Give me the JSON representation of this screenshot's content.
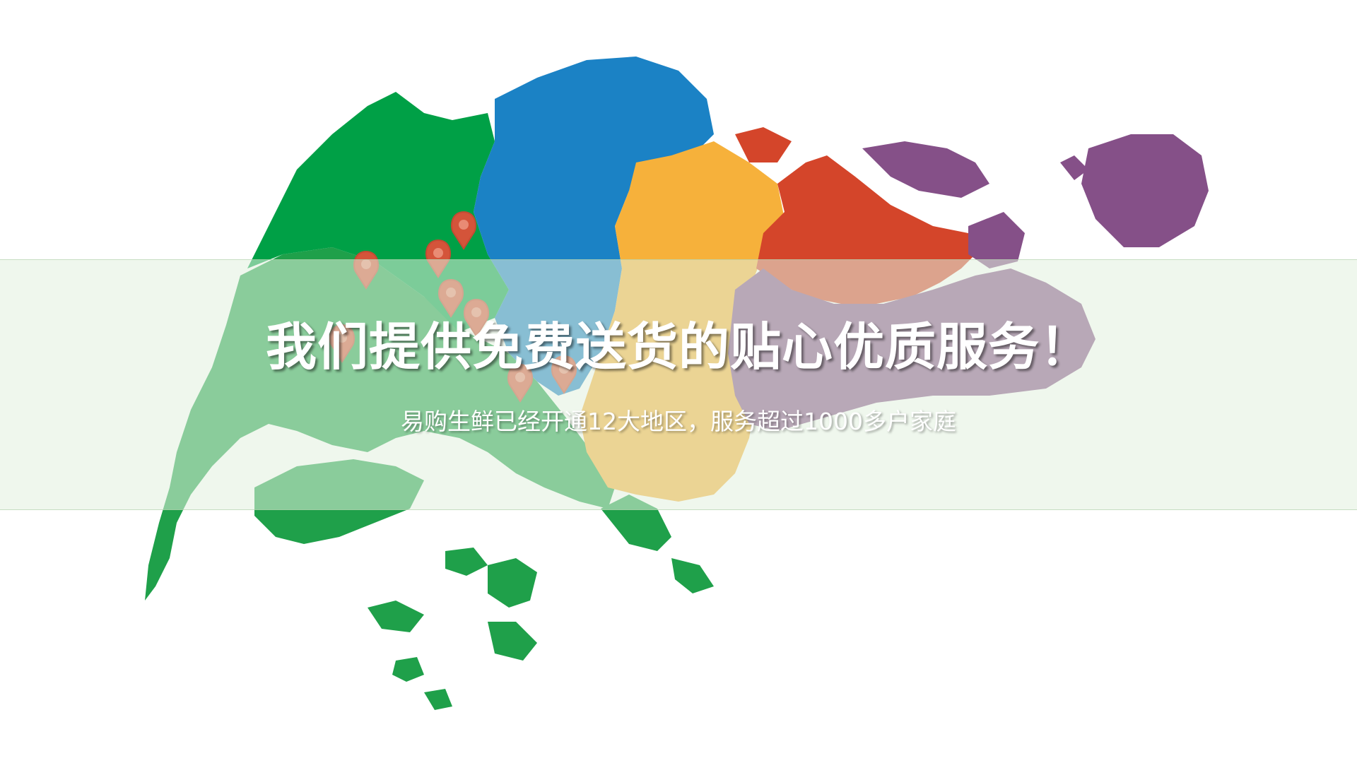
{
  "headline": "我们提供免费送货的贴心优质服务！",
  "subline": "易购生鲜已经开通12大地区，服务超过1000多户家庭",
  "colors": {
    "west_region": "#1fa04a",
    "north_region": "#00a046",
    "central_region": "#1b82c5",
    "north_east_region": "#f6b13b",
    "east_orange_region": "#d4452a",
    "east_region": "#855088",
    "pin": "#d4543a",
    "band": "#e1f0de"
  },
  "pins": {
    "count": 8,
    "icon": "location-pin-icon"
  }
}
